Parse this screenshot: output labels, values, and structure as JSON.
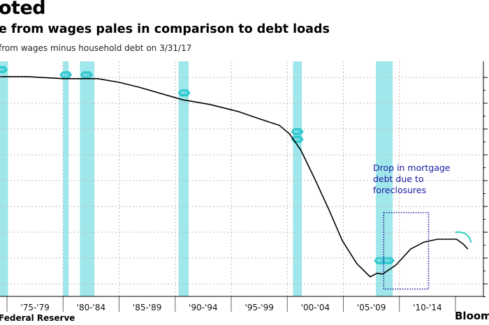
{
  "header": {
    "title": "oted",
    "subtitle": "e from wages pales in comparison to debt loads",
    "note": "from wages minus household debt on 3/31/17"
  },
  "footer": {
    "source": "Federal Reserve",
    "brand": "Bloom"
  },
  "colors": {
    "line": "#000000",
    "recession": "#8fe3e8",
    "recession_badge": "#2cc7cf",
    "annotation": "#1a1aa0",
    "projection_arc": "#2bd0c0"
  },
  "chart_data": {
    "type": "line",
    "title": "",
    "xlabel": "",
    "ylabel": "",
    "x_tick_labels": [
      "'75-'79",
      "'80-'84",
      "'85-'89",
      "'90-'94",
      "'95-'99",
      "'00-'04",
      "'05-'09",
      "'10-'14"
    ],
    "xlim": [
      1974.4,
      2017.6
    ],
    "ylim": [
      -0.5,
      8.3
    ],
    "y_gridlines": [
      0,
      1,
      2,
      3,
      4,
      5,
      6,
      7,
      8
    ],
    "grid": true,
    "series": [
      {
        "points": [
          [
            1974.4,
            8.03
          ],
          [
            1976.9,
            8.03
          ],
          [
            1980.0,
            7.95
          ],
          [
            1983.1,
            7.95
          ],
          [
            1985.0,
            7.81
          ],
          [
            1986.8,
            7.62
          ],
          [
            1990.6,
            7.14
          ],
          [
            1993.1,
            6.95
          ],
          [
            1995.6,
            6.68
          ],
          [
            1997.4,
            6.41
          ],
          [
            1999.3,
            6.14
          ],
          [
            2000.2,
            5.81
          ],
          [
            2001.2,
            5.19
          ],
          [
            2002.4,
            4.11
          ],
          [
            2003.7,
            2.89
          ],
          [
            2004.9,
            1.68
          ],
          [
            2006.2,
            0.78
          ],
          [
            2007.4,
            0.27
          ],
          [
            2008.0,
            0.41
          ],
          [
            2008.5,
            0.38
          ],
          [
            2009.7,
            0.73
          ],
          [
            2011.0,
            1.35
          ],
          [
            2012.2,
            1.62
          ],
          [
            2013.4,
            1.73
          ],
          [
            2015.1,
            1.73
          ],
          [
            2015.7,
            1.54
          ],
          [
            2016.1,
            1.35
          ]
        ]
      }
    ],
    "recessions": [
      [
        1973.9,
        1975.1
      ],
      [
        1980.0,
        1980.5
      ],
      [
        1981.5,
        1982.8
      ],
      [
        1990.3,
        1991.2
      ],
      [
        2000.5,
        2001.3
      ],
      [
        2007.9,
        2009.4
      ]
    ],
    "recession_badge": "REC",
    "annotation": {
      "lines": [
        "Drop in mortgage",
        "debt due to",
        "foreclosures"
      ],
      "box_x": [
        2008.6,
        2012.6
      ],
      "box_y": [
        -0.2,
        2.76
      ]
    },
    "projection_arc": {
      "from": [
        2015.0,
        2.0
      ],
      "to": [
        2016.4,
        1.6
      ]
    }
  }
}
